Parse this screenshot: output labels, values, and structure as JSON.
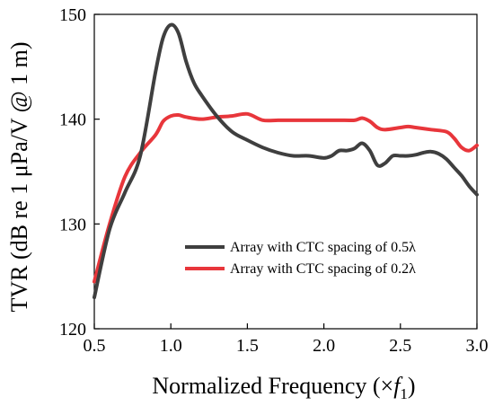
{
  "chart_data": {
    "type": "line",
    "xlabel_main": "Normalized Frequency (×",
    "xlabel_var": "f",
    "xlabel_sub": "1",
    "xlabel_close": ")",
    "ylabel": "TVR (dB re 1 μPa/V @ 1 m)",
    "xlim": [
      0.5,
      3.0
    ],
    "ylim": [
      120,
      150
    ],
    "xticks": [
      0.5,
      1.0,
      1.5,
      2.0,
      2.5,
      3.0
    ],
    "xtick_labels": [
      "0.5",
      "1.0",
      "1.5",
      "2.0",
      "2.5",
      "3.0"
    ],
    "yticks": [
      120,
      130,
      140,
      150
    ],
    "ytick_labels": [
      "120",
      "130",
      "140",
      "150"
    ],
    "grid": false,
    "legend_position": "bottom-right",
    "series": [
      {
        "name": "Array with CTC spacing of 0.5λ",
        "color": "#3f3f3f",
        "x": [
          0.5,
          0.6,
          0.7,
          0.8,
          0.9,
          0.95,
          1.0,
          1.05,
          1.1,
          1.15,
          1.2,
          1.3,
          1.4,
          1.5,
          1.6,
          1.7,
          1.8,
          1.9,
          2.0,
          2.05,
          2.1,
          2.15,
          2.2,
          2.25,
          2.3,
          2.35,
          2.4,
          2.45,
          2.5,
          2.55,
          2.6,
          2.65,
          2.7,
          2.75,
          2.8,
          2.85,
          2.9,
          2.95,
          3.0
        ],
        "y": [
          123.0,
          129.5,
          133.0,
          136.5,
          144.5,
          147.8,
          149.0,
          148.2,
          145.5,
          143.5,
          142.3,
          140.3,
          138.8,
          138.0,
          137.3,
          136.8,
          136.5,
          136.5,
          136.3,
          136.5,
          137.0,
          137.0,
          137.2,
          137.7,
          137.0,
          135.6,
          135.8,
          136.5,
          136.5,
          136.5,
          136.6,
          136.8,
          136.9,
          136.7,
          136.2,
          135.4,
          134.6,
          133.6,
          132.8
        ]
      },
      {
        "name": "Array with CTC spacing of 0.2λ",
        "color": "#e8363b",
        "x": [
          0.5,
          0.6,
          0.7,
          0.8,
          0.9,
          0.95,
          1.0,
          1.05,
          1.1,
          1.2,
          1.3,
          1.4,
          1.5,
          1.6,
          1.7,
          1.8,
          1.9,
          2.0,
          2.1,
          2.2,
          2.25,
          2.3,
          2.35,
          2.4,
          2.5,
          2.55,
          2.6,
          2.7,
          2.8,
          2.85,
          2.9,
          2.95,
          3.0
        ],
        "y": [
          124.5,
          130.0,
          134.5,
          136.8,
          138.5,
          139.8,
          140.3,
          140.4,
          140.2,
          140.0,
          140.2,
          140.3,
          140.5,
          139.9,
          139.9,
          139.9,
          139.9,
          139.9,
          139.9,
          139.9,
          140.1,
          139.8,
          139.2,
          139.0,
          139.2,
          139.3,
          139.2,
          139.0,
          138.8,
          138.2,
          137.3,
          137.0,
          137.5
        ]
      }
    ]
  }
}
